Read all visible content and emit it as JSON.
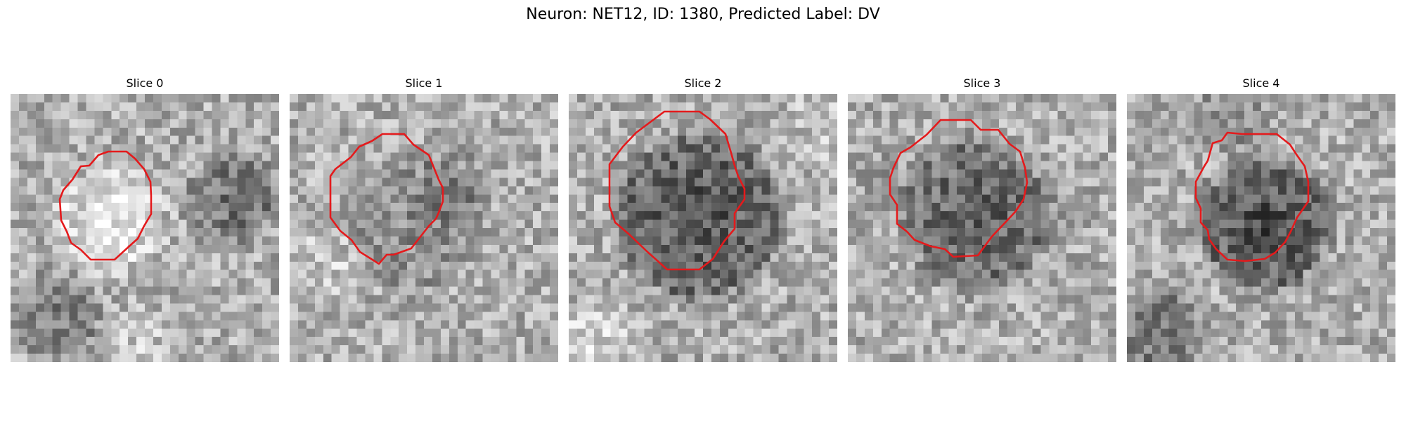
{
  "figure": {
    "title": "Neuron: NET12, ID: 1380, Predicted Label: DV",
    "overlay_color": "#e41a1c"
  },
  "panels": [
    {
      "title": "Slice 0",
      "image": "grayscale-microscopy-tile",
      "contour": "red-outline"
    },
    {
      "title": "Slice 1",
      "image": "grayscale-microscopy-tile",
      "contour": "red-outline"
    },
    {
      "title": "Slice 2",
      "image": "grayscale-microscopy-tile",
      "contour": "red-outline"
    },
    {
      "title": "Slice 3",
      "image": "grayscale-microscopy-tile",
      "contour": "red-outline"
    },
    {
      "title": "Slice 4",
      "image": "grayscale-microscopy-tile",
      "contour": "red-outline"
    }
  ]
}
